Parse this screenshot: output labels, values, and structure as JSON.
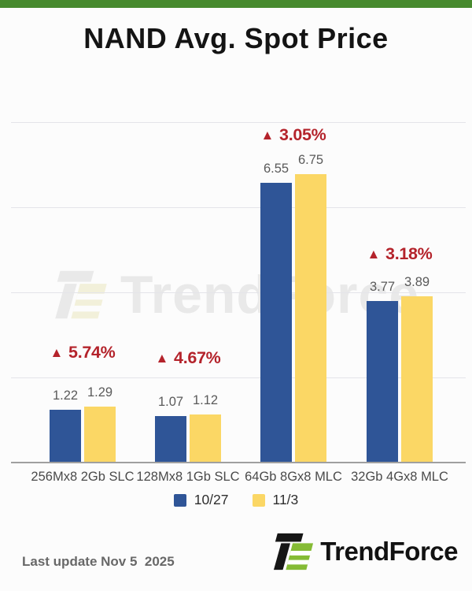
{
  "title": "NAND Avg. Spot Price",
  "chart_data": {
    "type": "bar",
    "title": "NAND Avg. Spot Price",
    "categories": [
      "256Mx8 2Gb SLC",
      "128Mx8 1Gb SLC",
      "64Gb 8Gx8 MLC",
      "32Gb 4Gx8 MLC"
    ],
    "series": [
      {
        "name": "10/27",
        "color": "#2f5597",
        "values": [
          1.22,
          1.07,
          6.55,
          3.77
        ]
      },
      {
        "name": "11/3",
        "color": "#fbd765",
        "values": [
          1.29,
          1.12,
          6.75,
          3.89
        ]
      }
    ],
    "change_percent": [
      "5.74%",
      "4.67%",
      "3.05%",
      "3.18%"
    ],
    "change_direction": "up",
    "change_arrow": "▲",
    "ylim": [
      0,
      8.1
    ],
    "gridline_values": [
      2,
      4,
      6,
      8
    ],
    "grid": true,
    "legend_position": "bottom",
    "value_labels_shown": true
  },
  "legend": {
    "items": [
      {
        "label": "10/27",
        "color": "#2f5597"
      },
      {
        "label": "11/3",
        "color": "#fbd765"
      }
    ]
  },
  "watermark": {
    "text": "TrendForce"
  },
  "footer": {
    "last_update": "Last update Nov 5  2025",
    "brand": "TrendForce"
  },
  "colors": {
    "accent_green": "#478a2e",
    "logo_green": "#85bb35",
    "bar_blue": "#2f5597",
    "bar_yellow": "#fbd765",
    "change_red": "#b4232b",
    "value_label": "#5a5a5a",
    "axis_label": "#4a4a4a",
    "gridline": "#e4e4e9",
    "axis_line": "#a0a0a0"
  }
}
